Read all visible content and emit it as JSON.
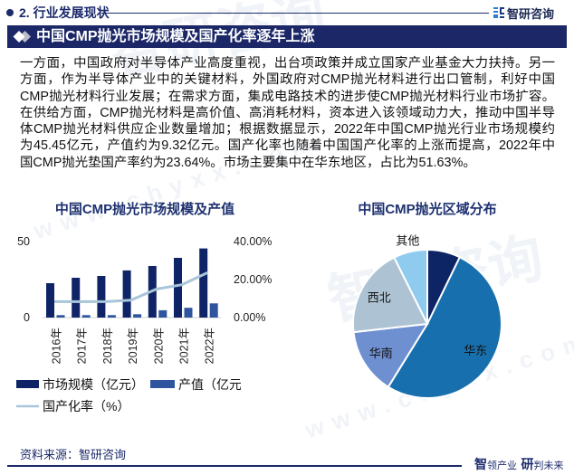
{
  "section": {
    "title": "2. 行业发展现状",
    "brand": "智研咨询"
  },
  "banner": {
    "title": "中国CMP抛光市场规模及国产化率逐年上涨"
  },
  "paragraph": {
    "lines": [
      "一方面，中国政府对半导体产业高度重视，出台项政策并成立国家产业基金大力扶持。另一",
      "方面，作为半导体产业中的关键材料，外国政府对CMP抛光材料进行出口管制，利好中国",
      "CMP抛光材料行业发展；在需求方面，集成电路技术的进步使CMP抛光材料行业市场扩容。",
      "在供给方面，CMP抛光材料是高价值、高消耗材料，资本进入该领域动力大，推动中国半导",
      "体CMP抛光材料供应企业数量增加；根据数据显示，2022年中国CMP抛光行业市场规模约",
      "为45.45亿元，产值约为9.32亿元。国产化率也随着中国国产化率的上涨而提高，2022年中",
      "国CMP抛光垫国产率约为23.64%。市场主要集中在华东地区，占比为51.63%。"
    ]
  },
  "chart_data": [
    {
      "type": "bar",
      "title": "中国CMP抛光市场规模及产值",
      "categories": [
        "2016年",
        "2017年",
        "2018年",
        "2019年",
        "2020年",
        "2021年",
        "2022年"
      ],
      "series": [
        {
          "name": "市场规模（亿元）",
          "type": "bar",
          "axis": "left",
          "color": "#0e2466",
          "values": [
            22.6,
            26.2,
            27.4,
            31.0,
            33.9,
            39.3,
            45.45
          ]
        },
        {
          "name": "产值（亿元",
          "type": "bar",
          "axis": "left",
          "color": "#2f559f",
          "values": [
            1.6,
            1.6,
            1.6,
            2.2,
            4.8,
            6.4,
            9.32
          ]
        },
        {
          "name": "国产化率（%）",
          "type": "line",
          "axis": "right",
          "color": "#a9c5d9",
          "values": [
            8.4,
            8.4,
            8.4,
            9.2,
            15.0,
            17.3,
            23.64
          ]
        }
      ],
      "left_axis": {
        "ticks": [
          "0",
          "50"
        ],
        "ylim": [
          0,
          50
        ]
      },
      "right_axis": {
        "ticks": [
          "0.00%",
          "20.00%",
          "40.00%"
        ],
        "ylim": [
          0,
          40
        ]
      },
      "xlabel": "",
      "ylabel": "",
      "grid": false,
      "legend_position": "bottom"
    },
    {
      "type": "pie",
      "title": "中国CMP抛光区域分布",
      "slices": [
        {
          "label": "",
          "value": 7.2,
          "color": "#0d2465"
        },
        {
          "label": "华东",
          "value": 51.63,
          "color": "#1770ad"
        },
        {
          "label": "华南",
          "value": 14.4,
          "color": "#6e8fd0"
        },
        {
          "label": "西北",
          "value": 19.4,
          "color": "#adc3d4"
        },
        {
          "label": "其他",
          "value": 7.37,
          "color": "#8fcbee"
        }
      ]
    }
  ],
  "footer": {
    "source": "资料来源：智研咨询",
    "slogan_a_big": "智",
    "slogan_a_small": "领产业",
    "slogan_b_big": "研",
    "slogan_b_small": "判未来"
  },
  "watermark": {
    "brand": "智研咨询",
    "url": "www.chyxx.com"
  },
  "colors": {
    "navy": "#1b2766",
    "title_blue": "#1e3170"
  }
}
